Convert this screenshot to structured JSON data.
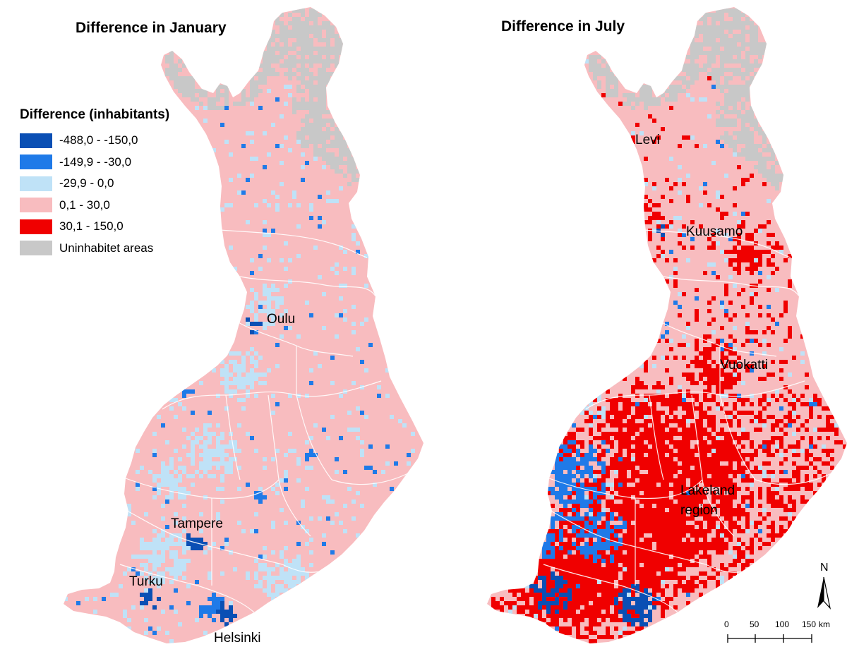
{
  "maps": [
    {
      "title": "Difference in January",
      "cities": [
        {
          "name": "Oulu"
        },
        {
          "name": "Tampere"
        },
        {
          "name": "Turku"
        },
        {
          "name": "Helsinki"
        }
      ]
    },
    {
      "title": "Difference in July",
      "cities": [
        {
          "name": "Levi"
        },
        {
          "name": "Kuusamo"
        },
        {
          "name": "Vuokatti"
        },
        {
          "name": "Lakeland\nregion"
        }
      ]
    }
  ],
  "legend": {
    "title": "Difference (inhabitants)",
    "items": [
      {
        "label": "-488,0 - -150,0",
        "color": "#0a4fb4"
      },
      {
        "label": "-149,9 - -30,0",
        "color": "#1f7ae8"
      },
      {
        "label": "-29,9 - 0,0",
        "color": "#bfe2f7"
      },
      {
        "label": "0,1 - 30,0",
        "color": "#f8bcbf"
      },
      {
        "label": "30,1 - 150,0",
        "color": "#f00000"
      },
      {
        "label": "Uninhabitet areas",
        "color": "#c8c8c8"
      }
    ]
  },
  "north_arrow": {
    "label": "N"
  },
  "scale_bar": {
    "ticks": [
      "0",
      "50",
      "100",
      "150"
    ],
    "unit": "km"
  }
}
